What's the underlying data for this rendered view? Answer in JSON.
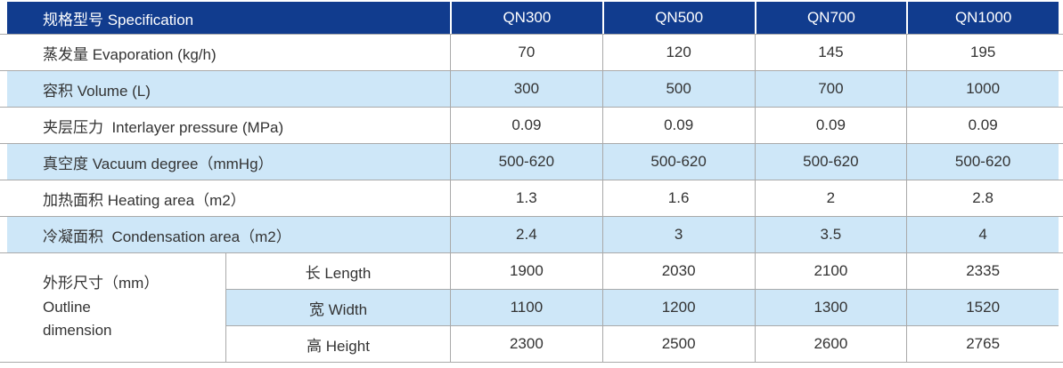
{
  "table": {
    "colors": {
      "header_bg": "#113c8e",
      "header_text": "#ffffff",
      "shade_bg": "#cee7f8",
      "grid_line": "#a9a9a9",
      "body_text": "#333333"
    },
    "header": {
      "label": "规格型号 Specification",
      "columns": [
        "QN300",
        "QN500",
        "QN700",
        "QN1000"
      ]
    },
    "rows": [
      {
        "label": "蒸发量 Evaporation (kg/h)",
        "values": [
          "70",
          "120",
          "145",
          "195"
        ]
      },
      {
        "label": "容积 Volume (L)",
        "values": [
          "300",
          "500",
          "700",
          "1000"
        ]
      },
      {
        "label": "夹层压力  Interlayer pressure (MPa)",
        "values": [
          "0.09",
          "0.09",
          "0.09",
          "0.09"
        ]
      },
      {
        "label": "真空度 Vacuum degree（mmHg）",
        "values": [
          "500-620",
          "500-620",
          "500-620",
          "500-620"
        ]
      },
      {
        "label": "加热面积 Heating area（m2）",
        "values": [
          "1.3",
          "1.6",
          "2",
          "2.8"
        ]
      },
      {
        "label": "冷凝面积  Condensation area（m2）",
        "values": [
          "2.4",
          "3",
          "3.5",
          "4"
        ]
      }
    ],
    "dimension_group": {
      "label_lines": [
        "外形尺寸（mm）",
        "Outline",
        "dimension"
      ],
      "rows": [
        {
          "label": "长 Length",
          "values": [
            "1900",
            "2030",
            "2100",
            "2335"
          ]
        },
        {
          "label": "宽 Width",
          "values": [
            "1100",
            "1200",
            "1300",
            "1520"
          ]
        },
        {
          "label": "高 Height",
          "values": [
            "2300",
            "2500",
            "2600",
            "2765"
          ]
        }
      ]
    }
  }
}
